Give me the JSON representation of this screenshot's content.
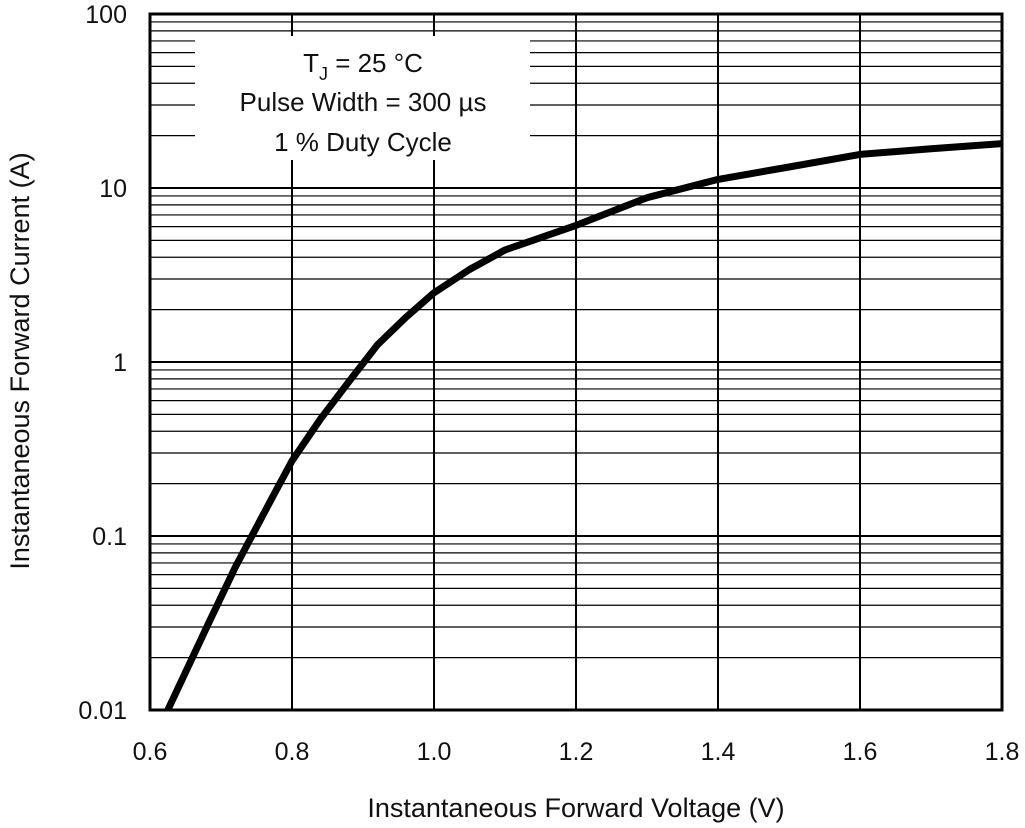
{
  "chart_data": {
    "type": "line",
    "xlabel": "Instantaneous Forward Voltage (V)",
    "ylabel": "Instantaneous Forward Current (A)",
    "xlim": [
      0.6,
      1.8
    ],
    "ylim": [
      0.01,
      100
    ],
    "yscale": "log",
    "grid": true,
    "x_ticks": [
      "0.6",
      "0.8",
      "1.0",
      "1.2",
      "1.4",
      "1.6",
      "1.8"
    ],
    "y_ticks": [
      "0.01",
      "0.1",
      "1",
      "10",
      "100"
    ],
    "annotation": {
      "line1_main": "T",
      "line1_sub": "J",
      "line1_rest": " = 25 °C",
      "line2": "Pulse Width = 300 µs",
      "line3": "1 % Duty Cycle"
    },
    "series": [
      {
        "x": [
          0.625,
          0.68,
          0.72,
          0.77,
          0.8,
          0.84,
          0.88,
          0.92,
          0.96,
          1.0,
          1.05,
          1.1,
          1.2,
          1.3,
          1.4,
          1.5,
          1.6,
          1.7,
          1.8
        ],
        "y": [
          0.01,
          0.03,
          0.066,
          0.16,
          0.27,
          0.47,
          0.77,
          1.25,
          1.8,
          2.5,
          3.4,
          4.4,
          6.1,
          8.8,
          11.2,
          13.2,
          15.6,
          16.8,
          18.0
        ]
      }
    ],
    "colors": {
      "line": "#000000",
      "grid": "#000000",
      "background": "#ffffff"
    }
  }
}
